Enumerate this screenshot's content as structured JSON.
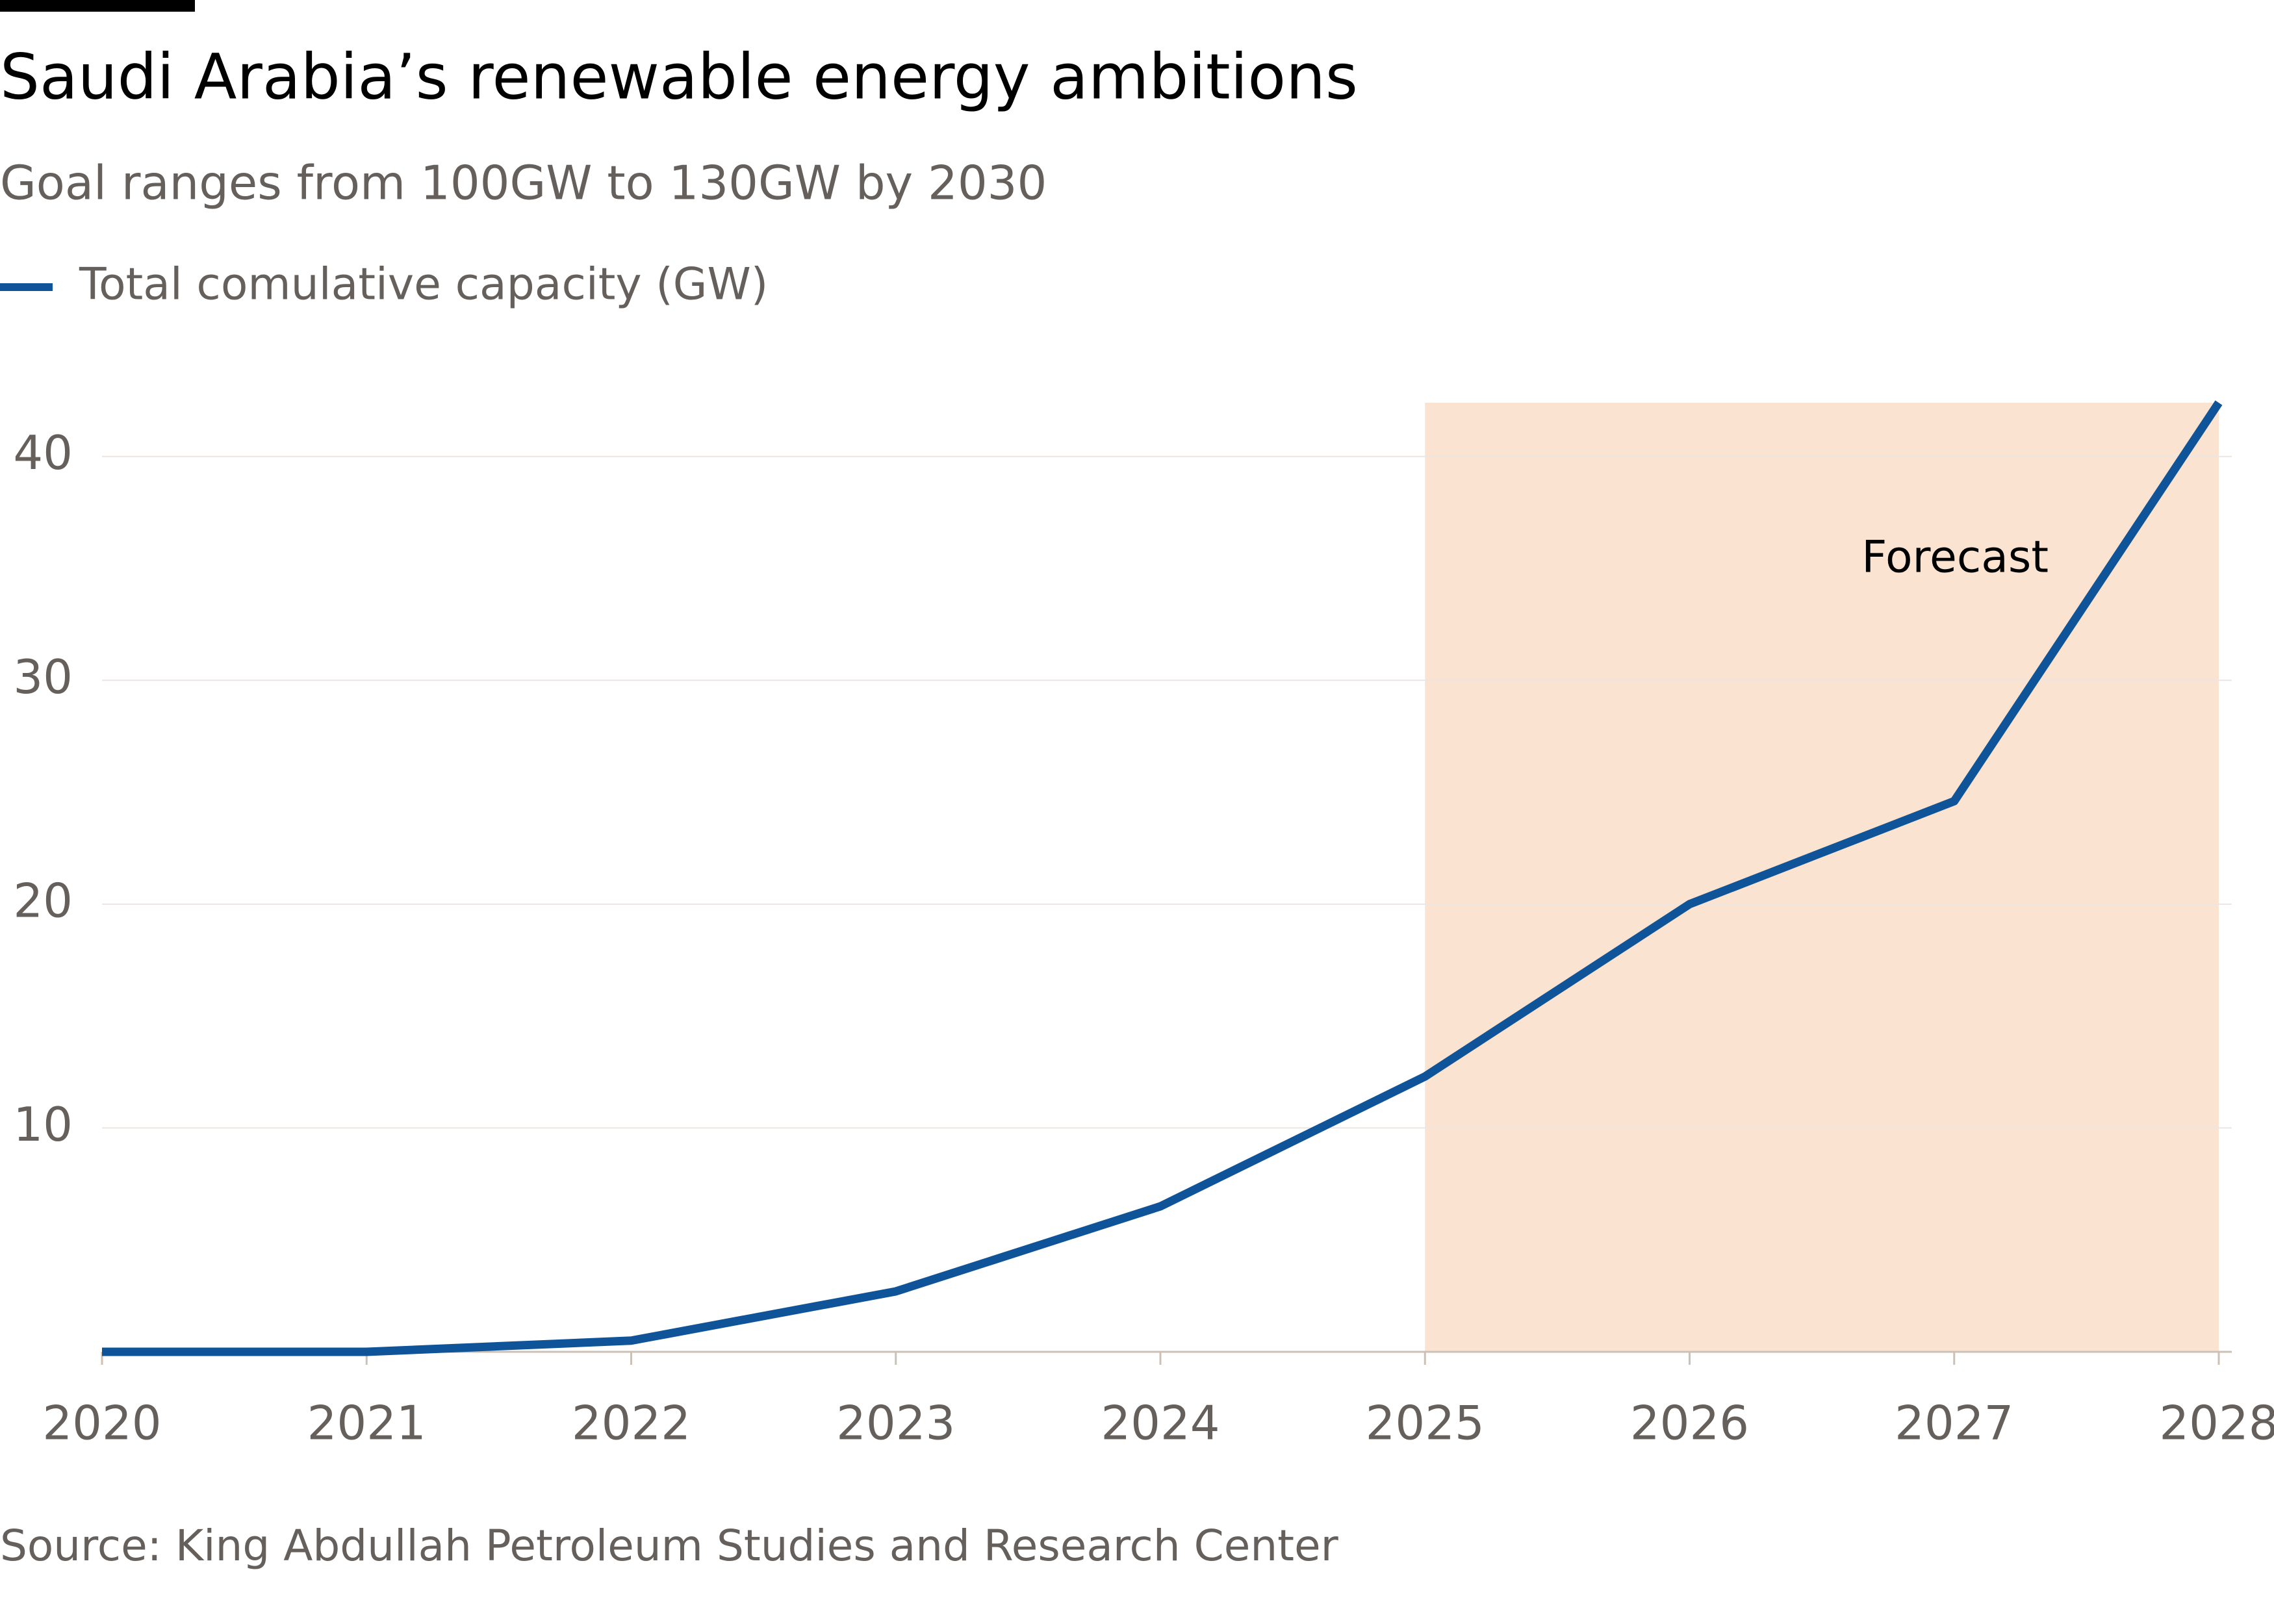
{
  "chart_data": {
    "type": "line",
    "title": "Saudi Arabia’s renewable energy ambitions",
    "subtitle": "Goal ranges from 100GW to 130GW by 2030",
    "source": "Source: King Abdullah Petroleum Studies and Research Center",
    "x": [
      2020,
      2021,
      2022,
      2023,
      2024,
      2025,
      2026,
      2027,
      2028
    ],
    "series": [
      {
        "name": "Total comulative capacity (GW)",
        "color": "#0f5499",
        "values": [
          0,
          0,
          0.5,
          2.7,
          6.5,
          12.3,
          20,
          24.6,
          42.4
        ]
      }
    ],
    "xlim": [
      2020,
      2028
    ],
    "xticks": [
      2020,
      2021,
      2022,
      2023,
      2024,
      2025,
      2026,
      2027,
      2028
    ],
    "ylim": [
      0,
      42.4
    ],
    "yticks": [
      10,
      20,
      30,
      40
    ],
    "grid": true,
    "legend": "top-left",
    "shaded_region": {
      "x": [
        2025,
        2028
      ],
      "label": "Forecast",
      "color": "#fbe3d2"
    }
  }
}
